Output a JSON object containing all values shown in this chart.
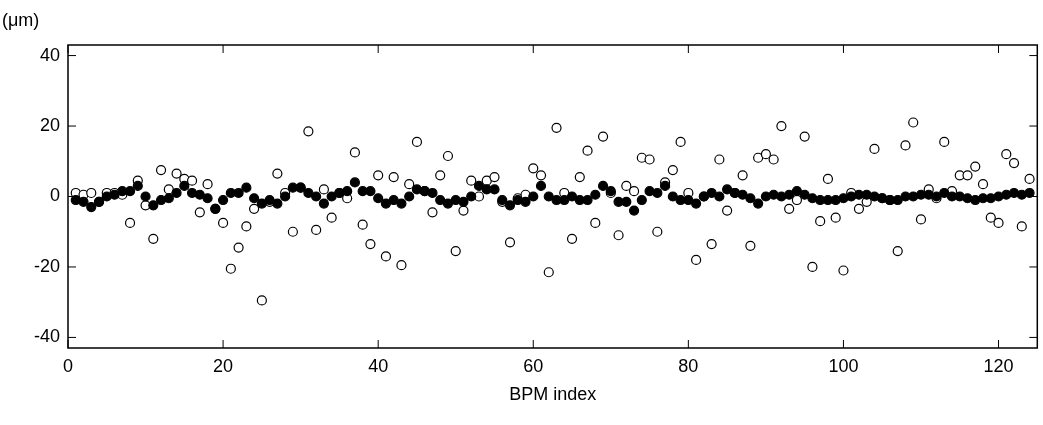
{
  "chart_data": {
    "type": "scatter",
    "xlabel": "BPM index",
    "ylabel": "(μm)",
    "xlim": [
      0,
      125
    ],
    "ylim": [
      -43,
      43
    ],
    "xticks": [
      0,
      20,
      40,
      60,
      80,
      100,
      120
    ],
    "yticks": [
      -40,
      -20,
      0,
      20,
      40
    ],
    "grid": false,
    "legend": false,
    "marker": "circle",
    "x": [
      1,
      2,
      3,
      4,
      5,
      6,
      7,
      8,
      9,
      10,
      11,
      12,
      13,
      14,
      15,
      16,
      17,
      18,
      19,
      20,
      21,
      22,
      23,
      24,
      25,
      26,
      27,
      28,
      29,
      30,
      31,
      32,
      33,
      34,
      35,
      36,
      37,
      38,
      39,
      40,
      41,
      42,
      43,
      44,
      45,
      46,
      47,
      48,
      49,
      50,
      51,
      52,
      53,
      54,
      55,
      56,
      57,
      58,
      59,
      60,
      61,
      62,
      63,
      64,
      65,
      66,
      67,
      68,
      69,
      70,
      71,
      72,
      73,
      74,
      75,
      76,
      77,
      78,
      79,
      80,
      81,
      82,
      83,
      84,
      85,
      86,
      87,
      88,
      89,
      90,
      91,
      92,
      93,
      94,
      95,
      96,
      97,
      98,
      99,
      100,
      101,
      102,
      103,
      104,
      105,
      106,
      107,
      108,
      109,
      110,
      111,
      112,
      113,
      114,
      115,
      116,
      117,
      118,
      119,
      120,
      121,
      122,
      123,
      124
    ],
    "series": [
      {
        "color": "#ffffff",
        "values": [
          1,
          0.5,
          1,
          -1.5,
          1,
          1,
          0.5,
          -7.5,
          4.5,
          -2.5,
          -12,
          7.5,
          2,
          6.5,
          5,
          4.5,
          -4.5,
          3.5,
          -3.5,
          -7.5,
          -20.5,
          -14.5,
          -8.5,
          -3.5,
          -29.5,
          -1.5,
          6.5,
          1,
          -10,
          2.5,
          18.5,
          -9.5,
          2,
          -6,
          1,
          -0.5,
          12.5,
          -8,
          -13.5,
          6,
          -17,
          5.5,
          -19.5,
          3.5,
          15.5,
          1.5,
          -4.5,
          6,
          11.5,
          -15.5,
          -4,
          4.5,
          0,
          4.5,
          5.5,
          -1.5,
          -13,
          -0.5,
          0.5,
          8,
          6,
          -21.5,
          19.5,
          1,
          -12,
          5.5,
          13,
          -7.5,
          17,
          1,
          -11,
          3,
          1.5,
          11,
          10.5,
          -10,
          4,
          7.5,
          15.5,
          1,
          -18,
          0,
          -13.5,
          10.5,
          -4,
          1,
          6,
          -14,
          11,
          12,
          10.5,
          20,
          -3.5,
          -1,
          17,
          -20,
          -7,
          5,
          -6,
          -21,
          1,
          -3.5,
          -1.5,
          13.5,
          -0.5,
          -1,
          -15.5,
          14.5,
          21,
          -6.5,
          2,
          -0.5,
          15.5,
          1.5,
          6,
          6,
          8.5,
          3.5,
          -6,
          -7.5,
          12,
          9.5,
          -8.5,
          5
        ]
      },
      {
        "color": "#000000",
        "values": [
          -1,
          -1.5,
          -3,
          -1.5,
          0,
          0.5,
          1.5,
          1.5,
          3,
          0,
          -2.5,
          -1,
          -0.5,
          1,
          3,
          1,
          0.5,
          -0.5,
          -3.5,
          -1,
          1,
          1,
          2.5,
          -0.5,
          -2,
          -1,
          -2,
          0,
          2.5,
          2.5,
          1,
          0,
          -2,
          0,
          1,
          1.5,
          4,
          1.5,
          1.5,
          -0.5,
          -2,
          -1,
          -2,
          0,
          2,
          1.5,
          1,
          -1,
          -2,
          -1,
          -1.5,
          0,
          3,
          2,
          2,
          -1,
          -2.5,
          -1,
          -1.5,
          0,
          3,
          0,
          -1,
          -1,
          0,
          -1,
          -1,
          0.5,
          3,
          1.5,
          -1.5,
          -1.5,
          -4,
          -1,
          1.5,
          1,
          3,
          0,
          -1,
          -1,
          -2,
          0,
          1,
          0,
          2,
          1,
          0.5,
          -0.5,
          -2,
          0,
          0.5,
          0,
          0.5,
          1.5,
          0.5,
          -0.5,
          -1,
          -1,
          -1,
          -0.5,
          0,
          0.5,
          0.5,
          0,
          -0.5,
          -1,
          -1,
          0,
          0,
          0.5,
          0.5,
          0,
          1,
          0,
          0,
          -0.5,
          -1,
          -0.5,
          -0.5,
          0,
          0.5,
          1,
          0.5,
          1
        ]
      }
    ]
  }
}
